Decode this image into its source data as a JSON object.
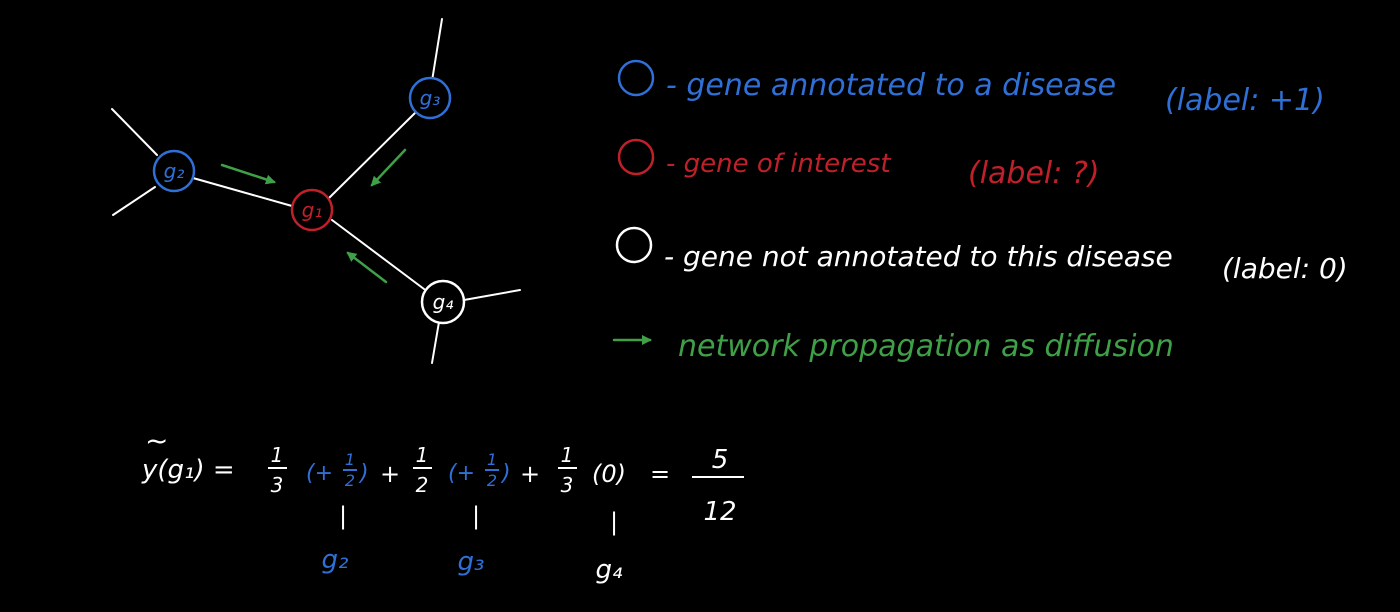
{
  "colors": {
    "background": "#000000",
    "annotated": "#2f6fd6",
    "interest": "#c0202a",
    "not_annotated": "#ffffff",
    "edge": "#ffffff",
    "arrow": "#3fa047"
  },
  "nodes": {
    "g1": "g₁",
    "g2": "g₂",
    "g3": "g₃",
    "g4": "g₄"
  },
  "legend": {
    "annotated": {
      "text": "- gene annotated to a disease",
      "label": "(label: +1)"
    },
    "interest": {
      "text": "- gene of interest",
      "label": "(label: ?)"
    },
    "not_annotated": {
      "text": "- gene not annotated to this disease",
      "label": "(label: 0)"
    },
    "propagation": {
      "text": "network propagation as diffusion"
    }
  },
  "equation": {
    "lhs_tilde": "~",
    "lhs": "y(g₁) =",
    "term1_coef_num": "1",
    "term1_coef_den": "3",
    "term1_open": "(+",
    "term1_num": "1",
    "term1_den": "2",
    "term1_close": ")",
    "plus1": "+",
    "term2_coef_num": "1",
    "term2_coef_den": "2",
    "term2_open": "(+",
    "term2_num": "1",
    "term2_den": "2",
    "term2_close": ")",
    "plus2": "+",
    "term3_coef_num": "1",
    "term3_coef_den": "3",
    "term3_value": "(0)",
    "equals": "=",
    "result_num": "5",
    "result_den": "12",
    "bar": "|",
    "under1": "g₂",
    "under2": "g₃",
    "under3": "g₄"
  }
}
